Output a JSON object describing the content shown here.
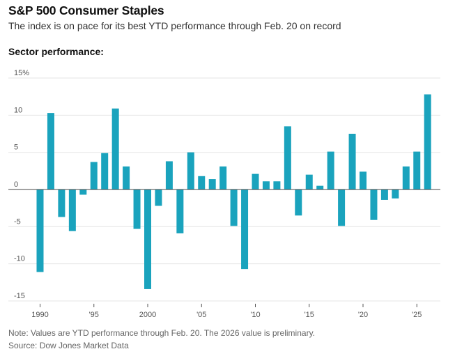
{
  "header": {
    "title": "S&P 500 Consumer Staples",
    "subtitle": "The index is on pace for its best YTD performance through Feb. 20 on record",
    "section_label": "Sector performance:"
  },
  "footer": {
    "note": "Note: Values are YTD performance through Feb. 20. The 2026 value is preliminary.",
    "source": "Source: Dow Jones Market Data"
  },
  "colors": {
    "bar": "#1aa3bd",
    "grid": "#e6e6e6",
    "zero_line": "#444444"
  },
  "chart_data": {
    "type": "bar",
    "title": "S&P 500 Consumer Staples",
    "xlabel": "",
    "ylabel": "",
    "ylim": [
      -15,
      15
    ],
    "y_ticks": [
      {
        "value": 15,
        "label": "15%"
      },
      {
        "value": 10,
        "label": "10"
      },
      {
        "value": 5,
        "label": "5"
      },
      {
        "value": 0,
        "label": "0"
      },
      {
        "value": -5,
        "label": "-5"
      },
      {
        "value": -10,
        "label": "-10"
      },
      {
        "value": -15,
        "label": "-15"
      }
    ],
    "x_ticks": [
      {
        "year": 1990,
        "label": "1990"
      },
      {
        "year": 1995,
        "label": "'95"
      },
      {
        "year": 2000,
        "label": "2000"
      },
      {
        "year": 2005,
        "label": "'05"
      },
      {
        "year": 2010,
        "label": "'10"
      },
      {
        "year": 2015,
        "label": "'15"
      },
      {
        "year": 2020,
        "label": "'20"
      },
      {
        "year": 2025,
        "label": "'25"
      }
    ],
    "categories": [
      1990,
      1991,
      1992,
      1993,
      1994,
      1995,
      1996,
      1997,
      1998,
      1999,
      2000,
      2001,
      2002,
      2003,
      2004,
      2005,
      2006,
      2007,
      2008,
      2009,
      2010,
      2011,
      2012,
      2013,
      2014,
      2015,
      2016,
      2017,
      2018,
      2019,
      2020,
      2021,
      2022,
      2023,
      2024,
      2025,
      2026
    ],
    "values": [
      -11.1,
      10.3,
      -3.7,
      -5.6,
      -0.7,
      3.7,
      4.9,
      10.9,
      3.1,
      -5.3,
      -13.4,
      -2.2,
      3.8,
      -5.9,
      5.0,
      1.8,
      1.4,
      3.1,
      -4.9,
      -10.7,
      2.1,
      1.1,
      1.1,
      8.5,
      -3.5,
      2.0,
      0.5,
      5.1,
      -4.9,
      7.5,
      2.4,
      -4.1,
      -1.4,
      -1.2,
      3.1,
      5.1,
      12.8
    ]
  }
}
